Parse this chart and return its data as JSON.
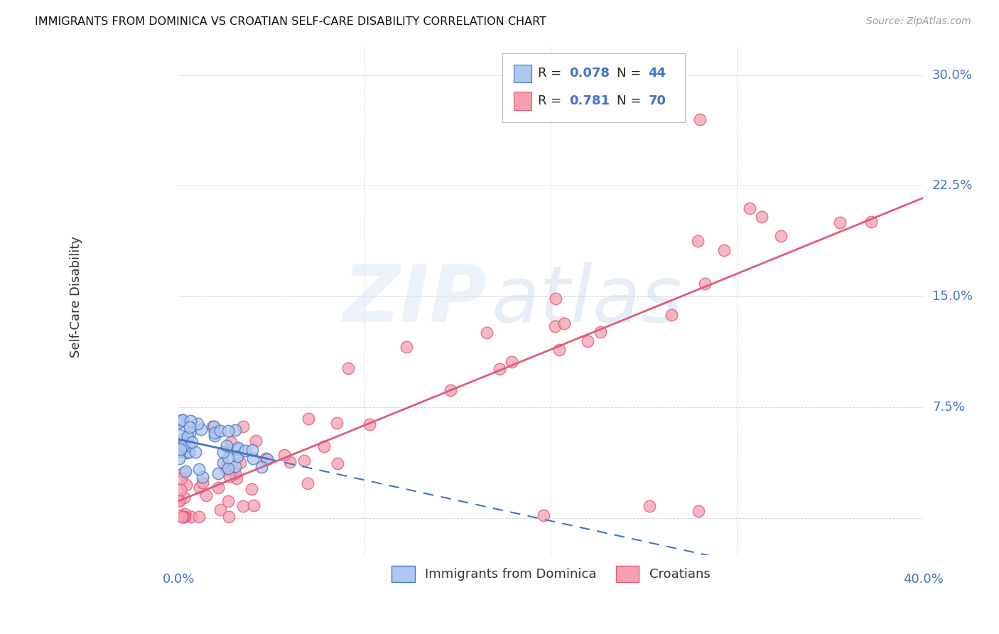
{
  "title": "IMMIGRANTS FROM DOMINICA VS CROATIAN SELF-CARE DISABILITY CORRELATION CHART",
  "source": "Source: ZipAtlas.com",
  "ylabel": "Self-Care Disability",
  "xlim": [
    0.0,
    0.4
  ],
  "ylim": [
    -0.025,
    0.32
  ],
  "yticks": [
    0.0,
    0.075,
    0.15,
    0.225,
    0.3
  ],
  "ytick_labels": [
    "",
    "7.5%",
    "15.0%",
    "22.5%",
    "30.0%"
  ],
  "xtick_left_label": "0.0%",
  "xtick_right_label": "40.0%",
  "background_color": "#ffffff",
  "grid_color": "#cccccc",
  "watermark_zip": "ZIP",
  "watermark_atlas": "atlas",
  "dominica_fill": "#aec6f0",
  "dominica_edge": "#4472c4",
  "croatian_fill": "#f5a0b0",
  "croatian_edge": "#e05a7a",
  "dominica_line_color": "#4472c4",
  "croatian_line_color": "#e05a7a",
  "R_dominica": "0.078",
  "N_dominica": "44",
  "R_croatian": "0.781",
  "N_croatian": "70",
  "legend_label_1": "Immigrants from Dominica",
  "legend_label_2": "Croatians",
  "text_color_dark": "#333333",
  "text_color_blue": "#4472c4",
  "text_color_source": "#999999"
}
